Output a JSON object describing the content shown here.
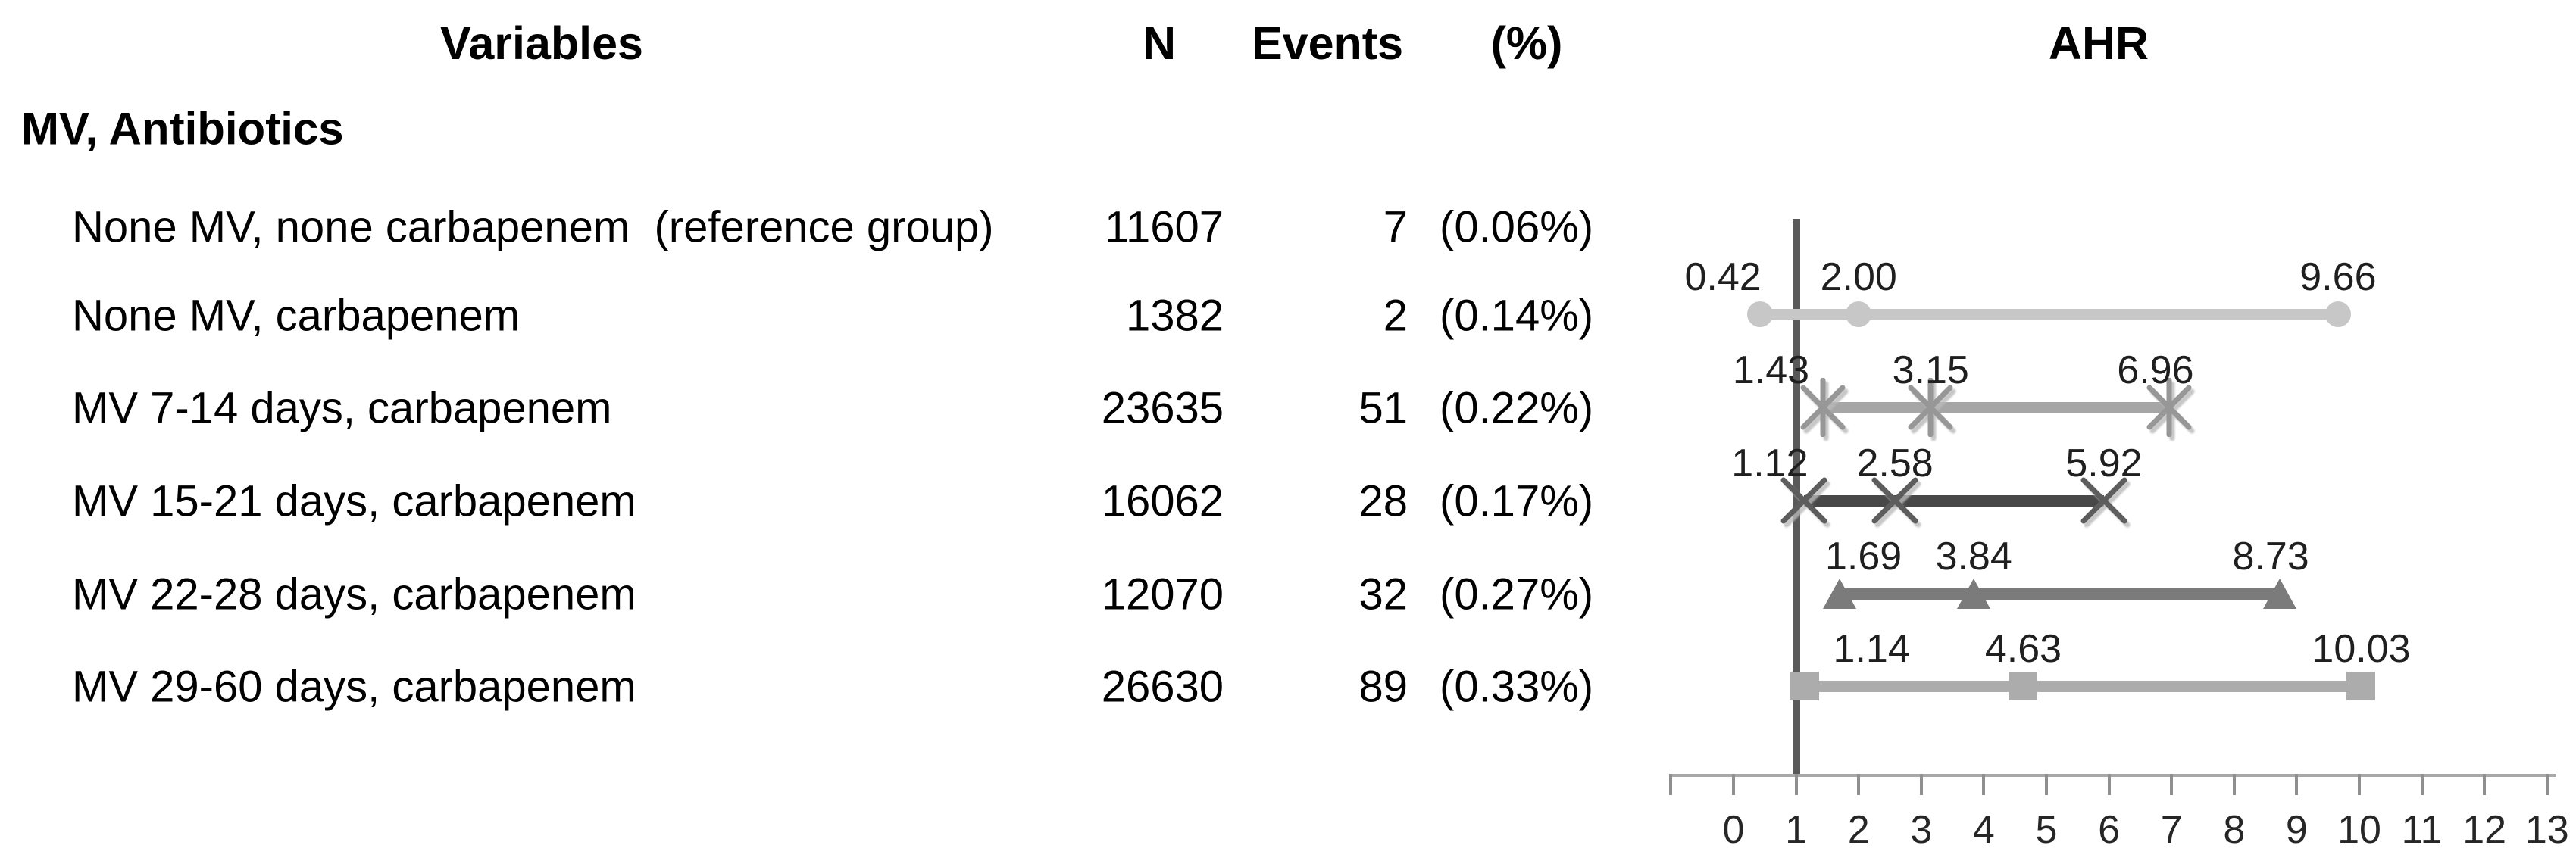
{
  "header": {
    "variables": "Variables",
    "n": "N",
    "events": "Events",
    "pct": "(%)",
    "ahr": "AHR"
  },
  "section_title": "MV, Antibiotics",
  "table_rows": [
    {
      "label": "None MV, none carbapenem  (reference group)",
      "n": "11607",
      "events": "7",
      "pct": "(0.06%)"
    },
    {
      "label": "None MV, carbapenem",
      "n": "1382",
      "events": "2",
      "pct": "(0.14%)"
    },
    {
      "label": "MV 7-14 days, carbapenem",
      "n": "23635",
      "events": "51",
      "pct": "(0.22%)"
    },
    {
      "label": "MV 15-21 days, carbapenem",
      "n": "16062",
      "events": "28",
      "pct": "(0.17%)"
    },
    {
      "label": "MV 22-28 days, carbapenem",
      "n": "12070",
      "events": "32",
      "pct": "(0.27%)"
    },
    {
      "label": "MV 29-60 days, carbapenem",
      "n": "26630",
      "events": "89",
      "pct": "(0.33%)"
    }
  ],
  "chart_data": {
    "type": "scatter",
    "subtype": "forest-plot",
    "title": "AHR",
    "xlabel": "",
    "ylabel": "",
    "grid": false,
    "legend_position": "none",
    "axis": {
      "xlim": [
        -1,
        13
      ],
      "tick_step": 1,
      "tick_labels": [
        "0",
        "1",
        "2",
        "3",
        "4",
        "5",
        "6",
        "7",
        "8",
        "9",
        "10",
        "11",
        "12",
        "13"
      ],
      "reference_line_x": 1,
      "reference_line_color": "#595959",
      "axis_color": "#a8a8a8",
      "tick_color": "#8f8f8f"
    },
    "series": [
      {
        "name": "None MV, carbapenem",
        "marker": "circle",
        "line_color": "#c7c7c7",
        "marker_color": "#c7c7c7",
        "values": [
          0.42,
          2.0,
          9.66
        ],
        "labels": [
          "0.42",
          "2.00",
          "9.66"
        ],
        "label_layout": [
          {
            "align": "right",
            "dx": 2
          },
          null,
          null
        ]
      },
      {
        "name": "MV 7-14 days, carbapenem",
        "marker": "asterisk",
        "line_color": "#a6a6a6",
        "marker_color": "#979797",
        "values": [
          1.43,
          3.15,
          6.96
        ],
        "labels": [
          "1.43",
          "3.15",
          "6.96"
        ],
        "label_layout": [
          {
            "align": "right",
            "dx": -18
          },
          null,
          {
            "dx": -18
          }
        ]
      },
      {
        "name": "MV 15-21 days, carbapenem",
        "marker": "xmark",
        "line_color": "#484848",
        "marker_color": "#5d5d5d",
        "values": [
          1.12,
          2.58,
          5.92
        ],
        "labels": [
          "1.12",
          "2.58",
          "5.92"
        ],
        "label_layout": [
          {
            "align": "right",
            "dx": 6
          },
          null,
          null
        ]
      },
      {
        "name": "MV 22-28 days, carbapenem",
        "marker": "triangle",
        "line_color": "#7b7b7b",
        "marker_color": "#7b7b7b",
        "values": [
          1.69,
          3.84,
          8.73
        ],
        "labels": [
          "1.69",
          "3.84",
          "8.73"
        ],
        "label_layout": [
          {
            "dx": 32
          },
          null,
          {
            "dx": -12
          }
        ]
      },
      {
        "name": "MV 29-60 days, carbapenem",
        "marker": "square",
        "line_color": "#acacac",
        "marker_color": "#acacac",
        "values": [
          1.14,
          4.63,
          10.03
        ],
        "labels": [
          "1.14",
          "4.63",
          "10.03"
        ],
        "label_layout": [
          {
            "dx": 88
          },
          null,
          null
        ]
      }
    ]
  }
}
